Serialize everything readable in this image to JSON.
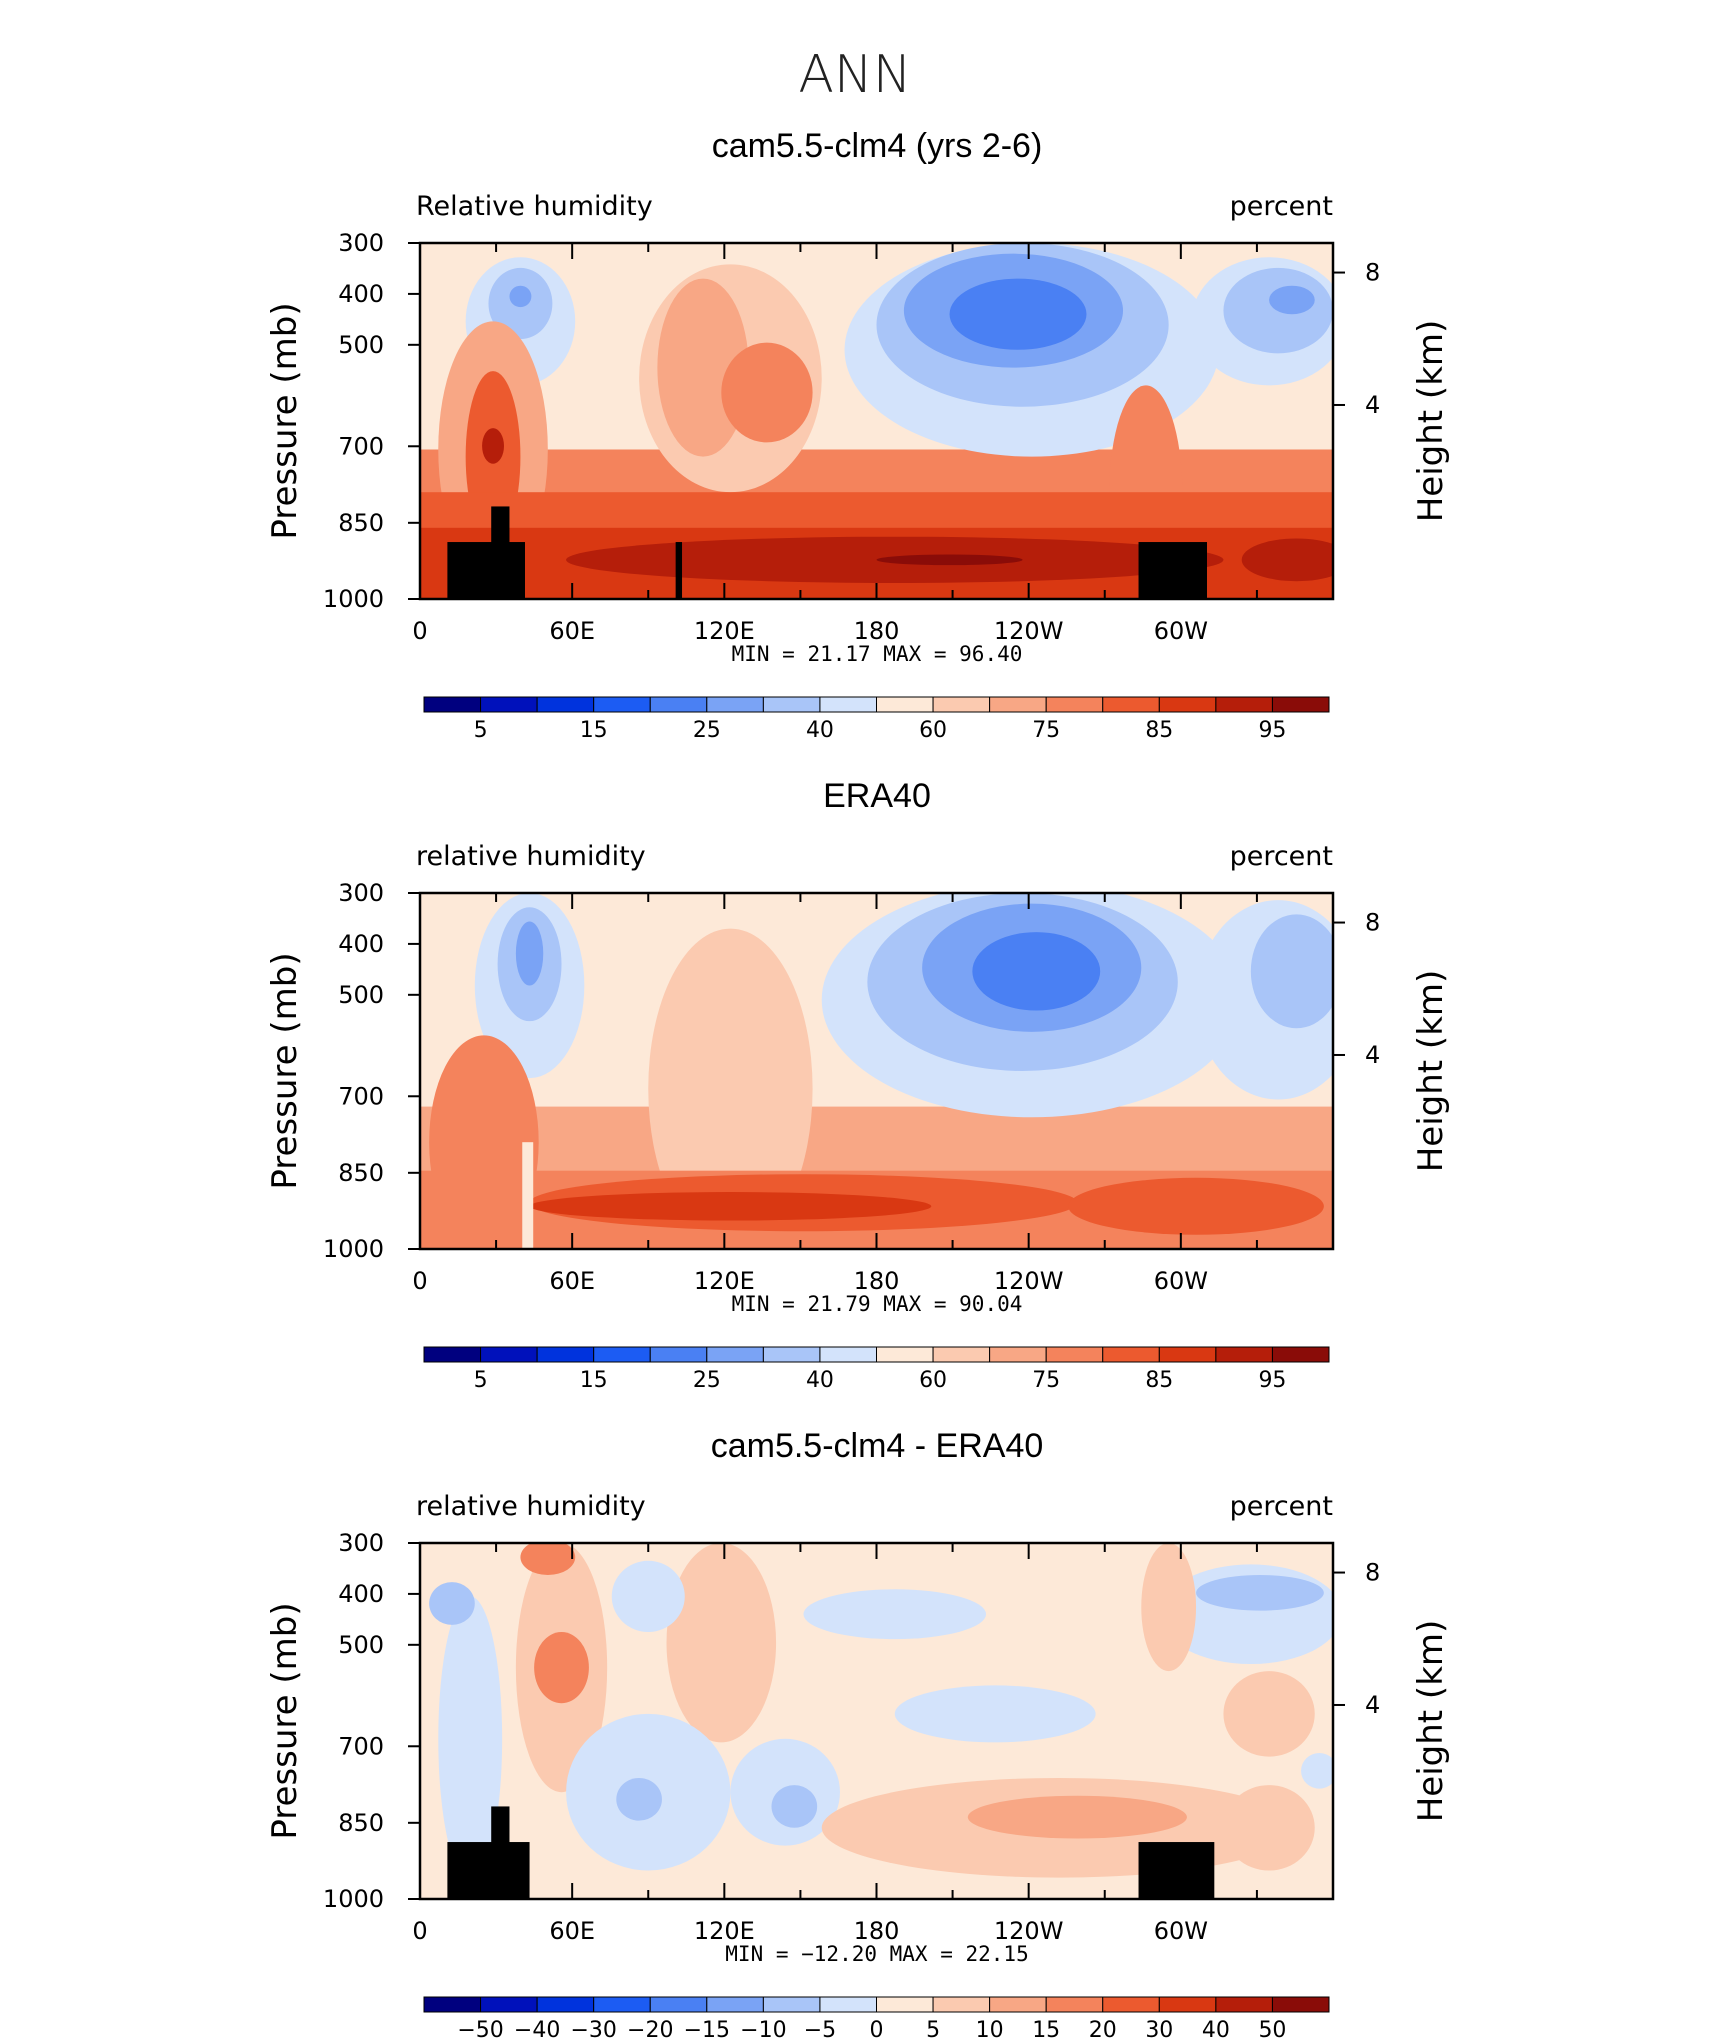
{
  "figure_title": "ANN",
  "chart_data": [
    {
      "type": "heatmap",
      "title": "cam5.5-clm4 (yrs 2-6)",
      "left_label": "Relative humidity",
      "right_label": "percent",
      "ylabel": "Pressure (mb)",
      "y2label": "Height (km)",
      "x_ticks": [
        "0",
        "60E",
        "120E",
        "180",
        "120W",
        "60W"
      ],
      "y_ticks": [
        "300",
        "400",
        "500",
        "700",
        "850",
        "1000"
      ],
      "y2_ticks": [
        "8",
        "4"
      ],
      "stats": "MIN =   21.17   MAX =   96.40",
      "min": 21.17,
      "max": 96.4,
      "colorbar_labels": [
        "5",
        "15",
        "25",
        "40",
        "60",
        "75",
        "85",
        "95"
      ],
      "colormap": "blue-white-red",
      "topography": true
    },
    {
      "type": "heatmap",
      "title": "ERA40",
      "left_label": "relative humidity",
      "right_label": "percent",
      "ylabel": "Pressure (mb)",
      "y2label": "Height (km)",
      "x_ticks": [
        "0",
        "60E",
        "120E",
        "180",
        "120W",
        "60W"
      ],
      "y_ticks": [
        "300",
        "400",
        "500",
        "700",
        "850",
        "1000"
      ],
      "y2_ticks": [
        "8",
        "4"
      ],
      "stats": "MIN =   21.79   MAX =   90.04",
      "min": 21.79,
      "max": 90.04,
      "colorbar_labels": [
        "5",
        "15",
        "25",
        "40",
        "60",
        "75",
        "85",
        "95"
      ],
      "colormap": "blue-white-red",
      "topography": false
    },
    {
      "type": "heatmap",
      "title": "cam5.5-clm4 - ERA40",
      "left_label": "relative humidity",
      "right_label": "percent",
      "ylabel": "Pressure (mb)",
      "y2label": "Height (km)",
      "x_ticks": [
        "0",
        "60E",
        "120E",
        "180",
        "120W",
        "60W"
      ],
      "y_ticks": [
        "300",
        "400",
        "500",
        "700",
        "850",
        "1000"
      ],
      "y2_ticks": [
        "8",
        "4"
      ],
      "stats": "MIN = −12.20   MAX =   22.15",
      "min": -12.2,
      "max": 22.15,
      "colorbar_labels": [
        "−50",
        "−40",
        "−30",
        "−20",
        "−15",
        "−10",
        "−5",
        "0",
        "5",
        "10",
        "15",
        "20",
        "30",
        "40",
        "50"
      ],
      "colormap": "blue-white-red",
      "topography": true
    }
  ],
  "palette": [
    "#00007f",
    "#0011bb",
    "#0033dd",
    "#1c5cf3",
    "#4a80f3",
    "#7aa3f5",
    "#a9c5f8",
    "#d3e3fb",
    "#fde9d8",
    "#fbcab0",
    "#f8a785",
    "#f4835c",
    "#ec5a2f",
    "#d93812",
    "#b51e0a",
    "#8a0c08"
  ]
}
